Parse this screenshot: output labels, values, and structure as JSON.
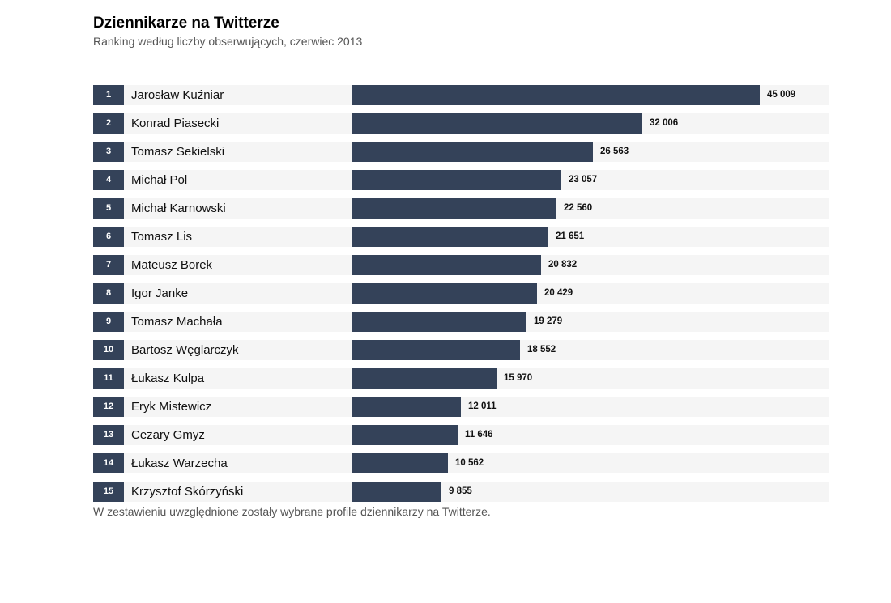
{
  "chart_data": {
    "type": "bar",
    "orientation": "horizontal",
    "title": "Dziennikarze na Twitterze",
    "subtitle": "Ranking według liczby obserwujących, czerwiec 2013",
    "footnote": "W zestawieniu uwzględnione zostały wybrane profile dziennikarzy na Twitterze.",
    "xlabel": "",
    "ylabel": "",
    "xlim": [
      0,
      45009
    ],
    "grid": false,
    "bar_color": "#344259",
    "track_color": "#f5f5f5",
    "rows": [
      {
        "rank": "1",
        "name": "Jarosław Kuźniar",
        "value": 45009,
        "label": "45 009"
      },
      {
        "rank": "2",
        "name": "Konrad Piasecki",
        "value": 32006,
        "label": "32 006"
      },
      {
        "rank": "3",
        "name": "Tomasz Sekielski",
        "value": 26563,
        "label": "26 563"
      },
      {
        "rank": "4",
        "name": "Michał Pol",
        "value": 23057,
        "label": "23 057"
      },
      {
        "rank": "5",
        "name": "Michał Karnowski",
        "value": 22560,
        "label": "22 560"
      },
      {
        "rank": "6",
        "name": "Tomasz Lis",
        "value": 21651,
        "label": "21 651"
      },
      {
        "rank": "7",
        "name": "Mateusz Borek",
        "value": 20832,
        "label": "20 832"
      },
      {
        "rank": "8",
        "name": "Igor Janke",
        "value": 20429,
        "label": "20 429"
      },
      {
        "rank": "9",
        "name": "Tomasz Machała",
        "value": 19279,
        "label": "19 279"
      },
      {
        "rank": "10",
        "name": "Bartosz Węglarczyk",
        "value": 18552,
        "label": "18 552"
      },
      {
        "rank": "11",
        "name": "Łukasz Kulpa",
        "value": 15970,
        "label": "15 970"
      },
      {
        "rank": "12",
        "name": "Eryk Mistewicz",
        "value": 12011,
        "label": "12 011"
      },
      {
        "rank": "13",
        "name": "Cezary Gmyz",
        "value": 11646,
        "label": "11 646"
      },
      {
        "rank": "14",
        "name": "Łukasz Warzecha",
        "value": 10562,
        "label": "10 562"
      },
      {
        "rank": "15",
        "name": "Krzysztof Skórzyński",
        "value": 9855,
        "label": "9 855"
      }
    ]
  }
}
